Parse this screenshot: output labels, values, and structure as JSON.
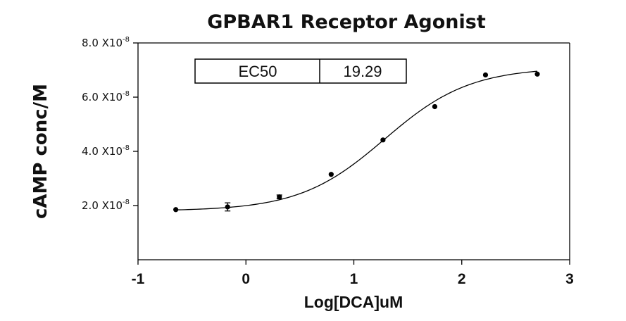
{
  "chart_data": {
    "type": "scatter",
    "title": "GPBAR1 Receptor Agonist",
    "xlabel": "Log[DCA]uM",
    "ylabel": "cAMP conc/M",
    "xlim": [
      -1,
      3
    ],
    "ylim": [
      0,
      8e-08
    ],
    "x_ticks": [
      {
        "value": -1,
        "label": "-1"
      },
      {
        "value": 0,
        "label": "0"
      },
      {
        "value": 1,
        "label": "1"
      },
      {
        "value": 2,
        "label": "2"
      },
      {
        "value": 3,
        "label": "3"
      }
    ],
    "y_ticks": [
      {
        "value": 2e-08,
        "mantissa": "2.0 X10",
        "exponent": "-8"
      },
      {
        "value": 4e-08,
        "mantissa": "4.0 X10",
        "exponent": "-8"
      },
      {
        "value": 6e-08,
        "mantissa": "6.0 X10",
        "exponent": "-8"
      },
      {
        "value": 8e-08,
        "mantissa": "8.0 X10",
        "exponent": "-8"
      }
    ],
    "points": [
      {
        "x": -0.65,
        "y": 1.85e-08,
        "err": 0
      },
      {
        "x": -0.17,
        "y": 1.95e-08,
        "err": 1.5e-09
      },
      {
        "x": 0.31,
        "y": 2.32e-08,
        "err": 7e-10
      },
      {
        "x": 0.79,
        "y": 3.15e-08,
        "err": 0
      },
      {
        "x": 1.27,
        "y": 4.42e-08,
        "err": 0
      },
      {
        "x": 1.75,
        "y": 5.65e-08,
        "err": 0
      },
      {
        "x": 2.22,
        "y": 6.82e-08,
        "err": 0
      },
      {
        "x": 2.7,
        "y": 6.85e-08,
        "err": 0
      }
    ],
    "fit_curve": {
      "model": "sigmoidal dose-response",
      "bottom": 1.8e-08,
      "top": 7.1e-08,
      "logEC50": 1.285,
      "hill": 1.1,
      "x_range": [
        -0.65,
        2.7
      ]
    },
    "annotation": {
      "label": "EC50",
      "value": "19.29"
    },
    "grid": false,
    "legend": "none"
  }
}
